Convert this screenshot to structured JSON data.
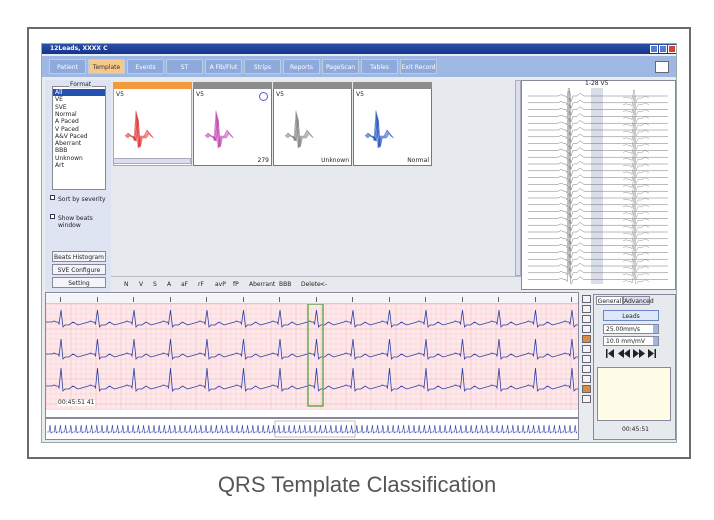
{
  "window": {
    "title": "12Leads, XXXX C"
  },
  "tabs": [
    "Patient",
    "Template",
    "Events",
    "ST",
    "A Fib/Flut",
    "Strips",
    "Reports",
    "PageScan",
    "Tables",
    "Exit Record"
  ],
  "left_panel": {
    "group_label": "Format",
    "list": [
      "All",
      "VE",
      "SVE",
      "Normal",
      "A Paced",
      "V Paced",
      "A&V Paced",
      "Aberrant",
      "BBB",
      "Unknown",
      "Art"
    ],
    "checkboxes": [
      "Sort by severity",
      "Show beats window"
    ],
    "buttons": [
      "Beats Histogram",
      "SVE Configure",
      "Setting"
    ]
  },
  "templates": [
    {
      "lead": "V5"
    },
    {
      "lead": "V5",
      "footer": "279"
    },
    {
      "lead": "V5",
      "footer": "Unknown"
    },
    {
      "lead": "V5",
      "footer": "Normal"
    }
  ],
  "label_buttons": [
    "N",
    "V",
    "S",
    "A",
    "aF",
    "rF",
    "avP",
    "fP",
    "Aberrant",
    "BBB",
    "Delete",
    "<-"
  ],
  "strip_panel": {
    "title": "1-28 V5"
  },
  "ecg": {
    "time": "00:45:51 41"
  },
  "controls": {
    "tabs": [
      "General",
      "Advanced"
    ],
    "leads_button": "Leads",
    "speed": "25.00mm/s",
    "gain": "10.0 mm/mV",
    "time": "00:45:51"
  },
  "caption": "QRS Template Classification"
}
